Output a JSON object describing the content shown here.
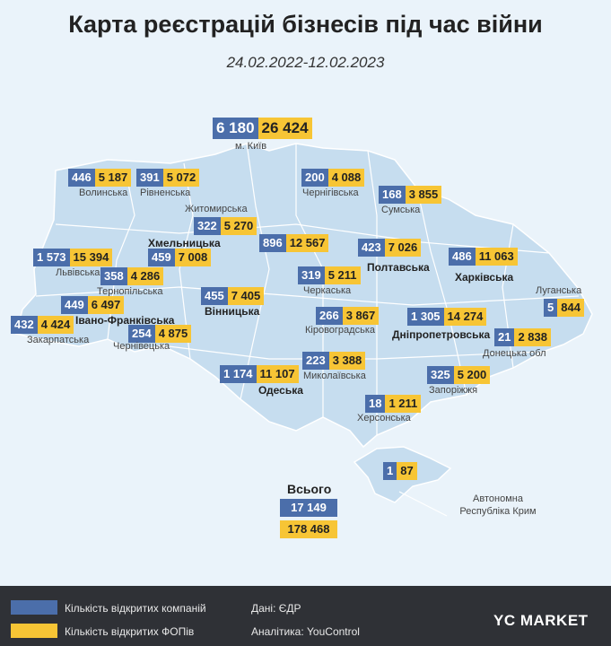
{
  "header": {
    "title": "Карта реєстрацій бізнесів під час війни",
    "subtitle": "24.02.2022-12.02.2023"
  },
  "colors": {
    "companies": "#4b6eaa",
    "fops": "#f7c535",
    "map": "#c6ddef"
  },
  "regions": [
    {
      "id": "kyiv",
      "name": "м. Київ",
      "companies": "6 180",
      "fops": "26 424"
    },
    {
      "id": "volyn",
      "name": "Волинська",
      "companies": "446",
      "fops": "5 187"
    },
    {
      "id": "rivne",
      "name": "Рівненська",
      "companies": "391",
      "fops": "5 072"
    },
    {
      "id": "chernihiv",
      "name": "Чернігівська",
      "companies": "200",
      "fops": "4 088"
    },
    {
      "id": "sumy",
      "name": "Сумська",
      "companies": "168",
      "fops": "3 855"
    },
    {
      "id": "zhytomyr",
      "name": "Житомирська",
      "companies": "322",
      "fops": "5 270"
    },
    {
      "id": "khmelnytskyi",
      "name": "Хмельницька",
      "companies": "459",
      "fops": "7 008"
    },
    {
      "id": "kyiv-obl",
      "name": "",
      "companies": "896",
      "fops": "12 567"
    },
    {
      "id": "poltava",
      "name": "Полтавська",
      "companies": "423",
      "fops": "7 026"
    },
    {
      "id": "kharkiv",
      "name": "Харківська",
      "companies": "486",
      "fops": "11 063"
    },
    {
      "id": "lviv",
      "name": "Львівська",
      "companies": "1 573",
      "fops": "15 394"
    },
    {
      "id": "ternopil",
      "name": "Тернопільська",
      "companies": "358",
      "fops": "4 286"
    },
    {
      "id": "cherkasy",
      "name": "Черкаська",
      "companies": "319",
      "fops": "5 211"
    },
    {
      "id": "luhansk",
      "name": "Луганська",
      "companies": "5",
      "fops": "844"
    },
    {
      "id": "ivano-frankivsk",
      "name": "Івано-Франківська",
      "companies": "449",
      "fops": "6 497"
    },
    {
      "id": "vinnytsia",
      "name": "Вінницька",
      "companies": "455",
      "fops": "7 405"
    },
    {
      "id": "kirovohrad",
      "name": "Кіровоградська",
      "companies": "266",
      "fops": "3 867"
    },
    {
      "id": "dnipro",
      "name": "Дніпропетровська",
      "companies": "1 305",
      "fops": "14 274"
    },
    {
      "id": "zakarpattia",
      "name": "Закарпатська",
      "companies": "432",
      "fops": "4 424"
    },
    {
      "id": "chernivtsi",
      "name": "Чернівецька",
      "companies": "254",
      "fops": "4 875"
    },
    {
      "id": "donetsk",
      "name": "Донецька обл",
      "companies": "21",
      "fops": "2 838"
    },
    {
      "id": "odesa",
      "name": "Одеська",
      "companies": "1 174",
      "fops": "11 107"
    },
    {
      "id": "mykolaiv",
      "name": "Миколаївська",
      "companies": "223",
      "fops": "3 388"
    },
    {
      "id": "zaporizhzhia",
      "name": "Запоріжжя",
      "companies": "325",
      "fops": "5 200"
    },
    {
      "id": "kherson",
      "name": "Херсонська",
      "companies": "18",
      "fops": "1 211"
    },
    {
      "id": "crimea",
      "name": "Автономна Республіка Крим",
      "companies": "1",
      "fops": "87"
    }
  ],
  "total": {
    "label": "Всього",
    "companies": "17 149",
    "fops": "178 468"
  },
  "footer": {
    "legend_companies": "Кількість відкритих компаній",
    "legend_fops": "Кількість відкритих ФОПів",
    "source": "Дані: ЄДР",
    "analytics": "Аналітика: YouControl",
    "logo": "YC MARKET"
  }
}
